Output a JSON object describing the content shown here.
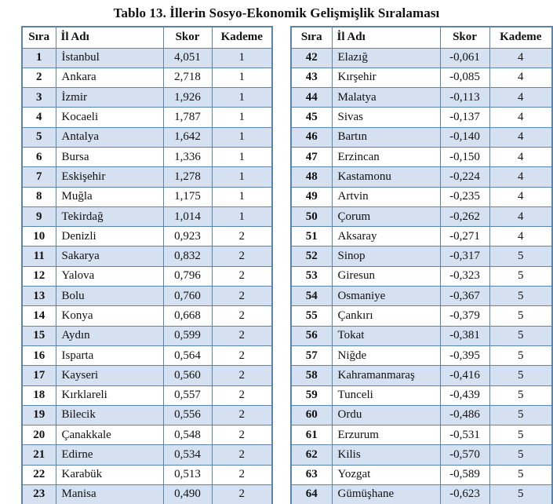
{
  "page": {
    "title": "Tablo 13. İllerin Sosyo-Ekonomik Gelişmişlik Sıralaması"
  },
  "columns": [
    "Sıra",
    "İl Adı",
    "Skor",
    "Kademe"
  ],
  "colors": {
    "table_border": "#5b84ad",
    "shaded_row_background": "#d5e0f0",
    "plain_row_background": "#ffffff",
    "text": "#111111"
  },
  "left_table": {
    "rows": [
      {
        "sira": "1",
        "il": "İstanbul",
        "skor": "4,051",
        "kademe": "1"
      },
      {
        "sira": "2",
        "il": "Ankara",
        "skor": "2,718",
        "kademe": "1"
      },
      {
        "sira": "3",
        "il": "İzmir",
        "skor": "1,926",
        "kademe": "1"
      },
      {
        "sira": "4",
        "il": "Kocaeli",
        "skor": "1,787",
        "kademe": "1"
      },
      {
        "sira": "5",
        "il": "Antalya",
        "skor": "1,642",
        "kademe": "1"
      },
      {
        "sira": "6",
        "il": "Bursa",
        "skor": "1,336",
        "kademe": "1"
      },
      {
        "sira": "7",
        "il": "Eskişehir",
        "skor": "1,278",
        "kademe": "1"
      },
      {
        "sira": "8",
        "il": "Muğla",
        "skor": "1,175",
        "kademe": "1"
      },
      {
        "sira": "9",
        "il": "Tekirdağ",
        "skor": "1,014",
        "kademe": "1"
      },
      {
        "sira": "10",
        "il": "Denizli",
        "skor": "0,923",
        "kademe": "2"
      },
      {
        "sira": "11",
        "il": "Sakarya",
        "skor": "0,832",
        "kademe": "2"
      },
      {
        "sira": "12",
        "il": "Yalova",
        "skor": "0,796",
        "kademe": "2"
      },
      {
        "sira": "13",
        "il": "Bolu",
        "skor": "0,760",
        "kademe": "2"
      },
      {
        "sira": "14",
        "il": "Konya",
        "skor": "0,668",
        "kademe": "2"
      },
      {
        "sira": "15",
        "il": "Aydın",
        "skor": "0,599",
        "kademe": "2"
      },
      {
        "sira": "16",
        "il": "Isparta",
        "skor": "0,564",
        "kademe": "2"
      },
      {
        "sira": "17",
        "il": "Kayseri",
        "skor": "0,560",
        "kademe": "2"
      },
      {
        "sira": "18",
        "il": "Kırklareli",
        "skor": "0,557",
        "kademe": "2"
      },
      {
        "sira": "19",
        "il": "Bilecik",
        "skor": "0,556",
        "kademe": "2"
      },
      {
        "sira": "20",
        "il": "Çanakkale",
        "skor": "0,548",
        "kademe": "2"
      },
      {
        "sira": "21",
        "il": "Edirne",
        "skor": "0,534",
        "kademe": "2"
      },
      {
        "sira": "22",
        "il": "Karabük",
        "skor": "0,513",
        "kademe": "2"
      },
      {
        "sira": "23",
        "il": "Manisa",
        "skor": "0,490",
        "kademe": "2"
      }
    ]
  },
  "right_table": {
    "rows": [
      {
        "sira": "42",
        "il": "Elazığ",
        "skor": "-0,061",
        "kademe": "4"
      },
      {
        "sira": "43",
        "il": "Kırşehir",
        "skor": "-0,085",
        "kademe": "4"
      },
      {
        "sira": "44",
        "il": "Malatya",
        "skor": "-0,113",
        "kademe": "4"
      },
      {
        "sira": "45",
        "il": "Sivas",
        "skor": "-0,137",
        "kademe": "4"
      },
      {
        "sira": "46",
        "il": "Bartın",
        "skor": "-0,140",
        "kademe": "4"
      },
      {
        "sira": "47",
        "il": "Erzincan",
        "skor": "-0,150",
        "kademe": "4"
      },
      {
        "sira": "48",
        "il": "Kastamonu",
        "skor": "-0,224",
        "kademe": "4"
      },
      {
        "sira": "49",
        "il": "Artvin",
        "skor": "-0,235",
        "kademe": "4"
      },
      {
        "sira": "50",
        "il": "Çorum",
        "skor": "-0,262",
        "kademe": "4"
      },
      {
        "sira": "51",
        "il": "Aksaray",
        "skor": "-0,271",
        "kademe": "4"
      },
      {
        "sira": "52",
        "il": "Sinop",
        "skor": "-0,317",
        "kademe": "5"
      },
      {
        "sira": "53",
        "il": "Giresun",
        "skor": "-0,323",
        "kademe": "5"
      },
      {
        "sira": "54",
        "il": "Osmaniye",
        "skor": "-0,367",
        "kademe": "5"
      },
      {
        "sira": "55",
        "il": "Çankırı",
        "skor": "-0,379",
        "kademe": "5"
      },
      {
        "sira": "56",
        "il": "Tokat",
        "skor": "-0,381",
        "kademe": "5"
      },
      {
        "sira": "57",
        "il": "Niğde",
        "skor": "-0,395",
        "kademe": "5"
      },
      {
        "sira": "58",
        "il": "Kahramanmaraş",
        "skor": "-0,416",
        "kademe": "5"
      },
      {
        "sira": "59",
        "il": "Tunceli",
        "skor": "-0,439",
        "kademe": "5"
      },
      {
        "sira": "60",
        "il": "Ordu",
        "skor": "-0,486",
        "kademe": "5"
      },
      {
        "sira": "61",
        "il": "Erzurum",
        "skor": "-0,531",
        "kademe": "5"
      },
      {
        "sira": "62",
        "il": "Kilis",
        "skor": "-0,570",
        "kademe": "5"
      },
      {
        "sira": "63",
        "il": "Yozgat",
        "skor": "-0,589",
        "kademe": "5"
      },
      {
        "sira": "64",
        "il": "Gümüşhane",
        "skor": "-0,623",
        "kademe": "5"
      }
    ]
  }
}
